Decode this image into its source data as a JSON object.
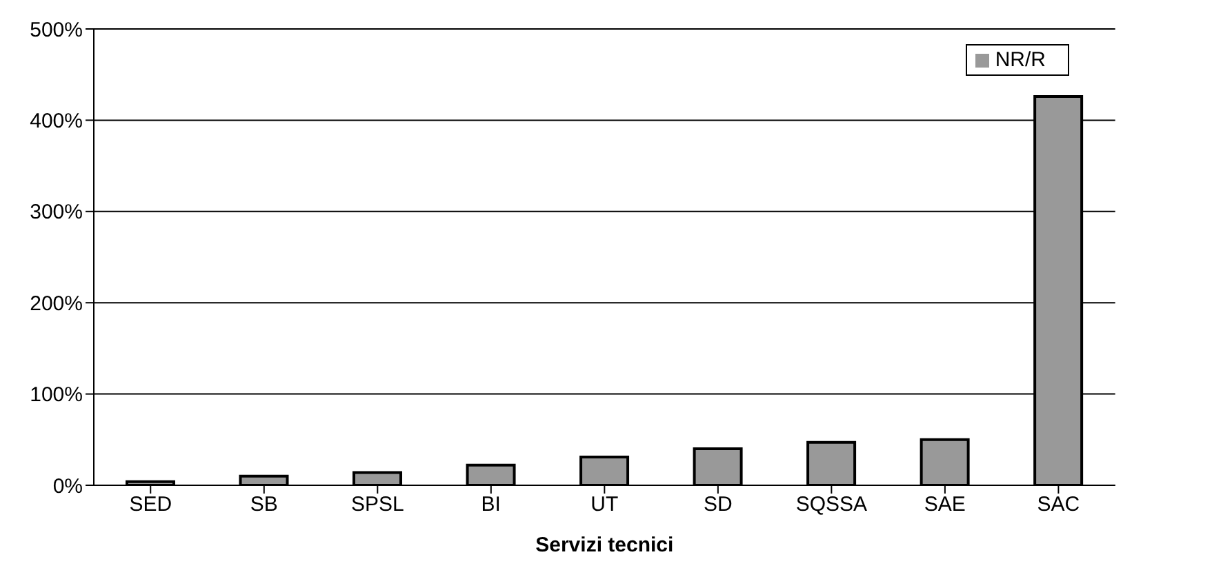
{
  "chart_data": {
    "type": "bar",
    "xlabel": "Servizi tecnici",
    "categories": [
      "SED",
      "SB",
      "SPSL",
      "BI",
      "UT",
      "SD",
      "SQSSA",
      "SAE",
      "SAC"
    ],
    "series": [
      {
        "name": "NR/R",
        "color": "#999999",
        "values": [
          4,
          10,
          14,
          22,
          31,
          40,
          47,
          50,
          426
        ]
      }
    ],
    "ylim": [
      0,
      500
    ],
    "yticks": [
      {
        "value": 0,
        "label": "0%"
      },
      {
        "value": 100,
        "label": "100%"
      },
      {
        "value": 200,
        "label": "200%"
      },
      {
        "value": 300,
        "label": "300%"
      },
      {
        "value": 400,
        "label": "400%"
      },
      {
        "value": 500,
        "label": "500%"
      }
    ],
    "grid": "y",
    "legend": "top right"
  }
}
